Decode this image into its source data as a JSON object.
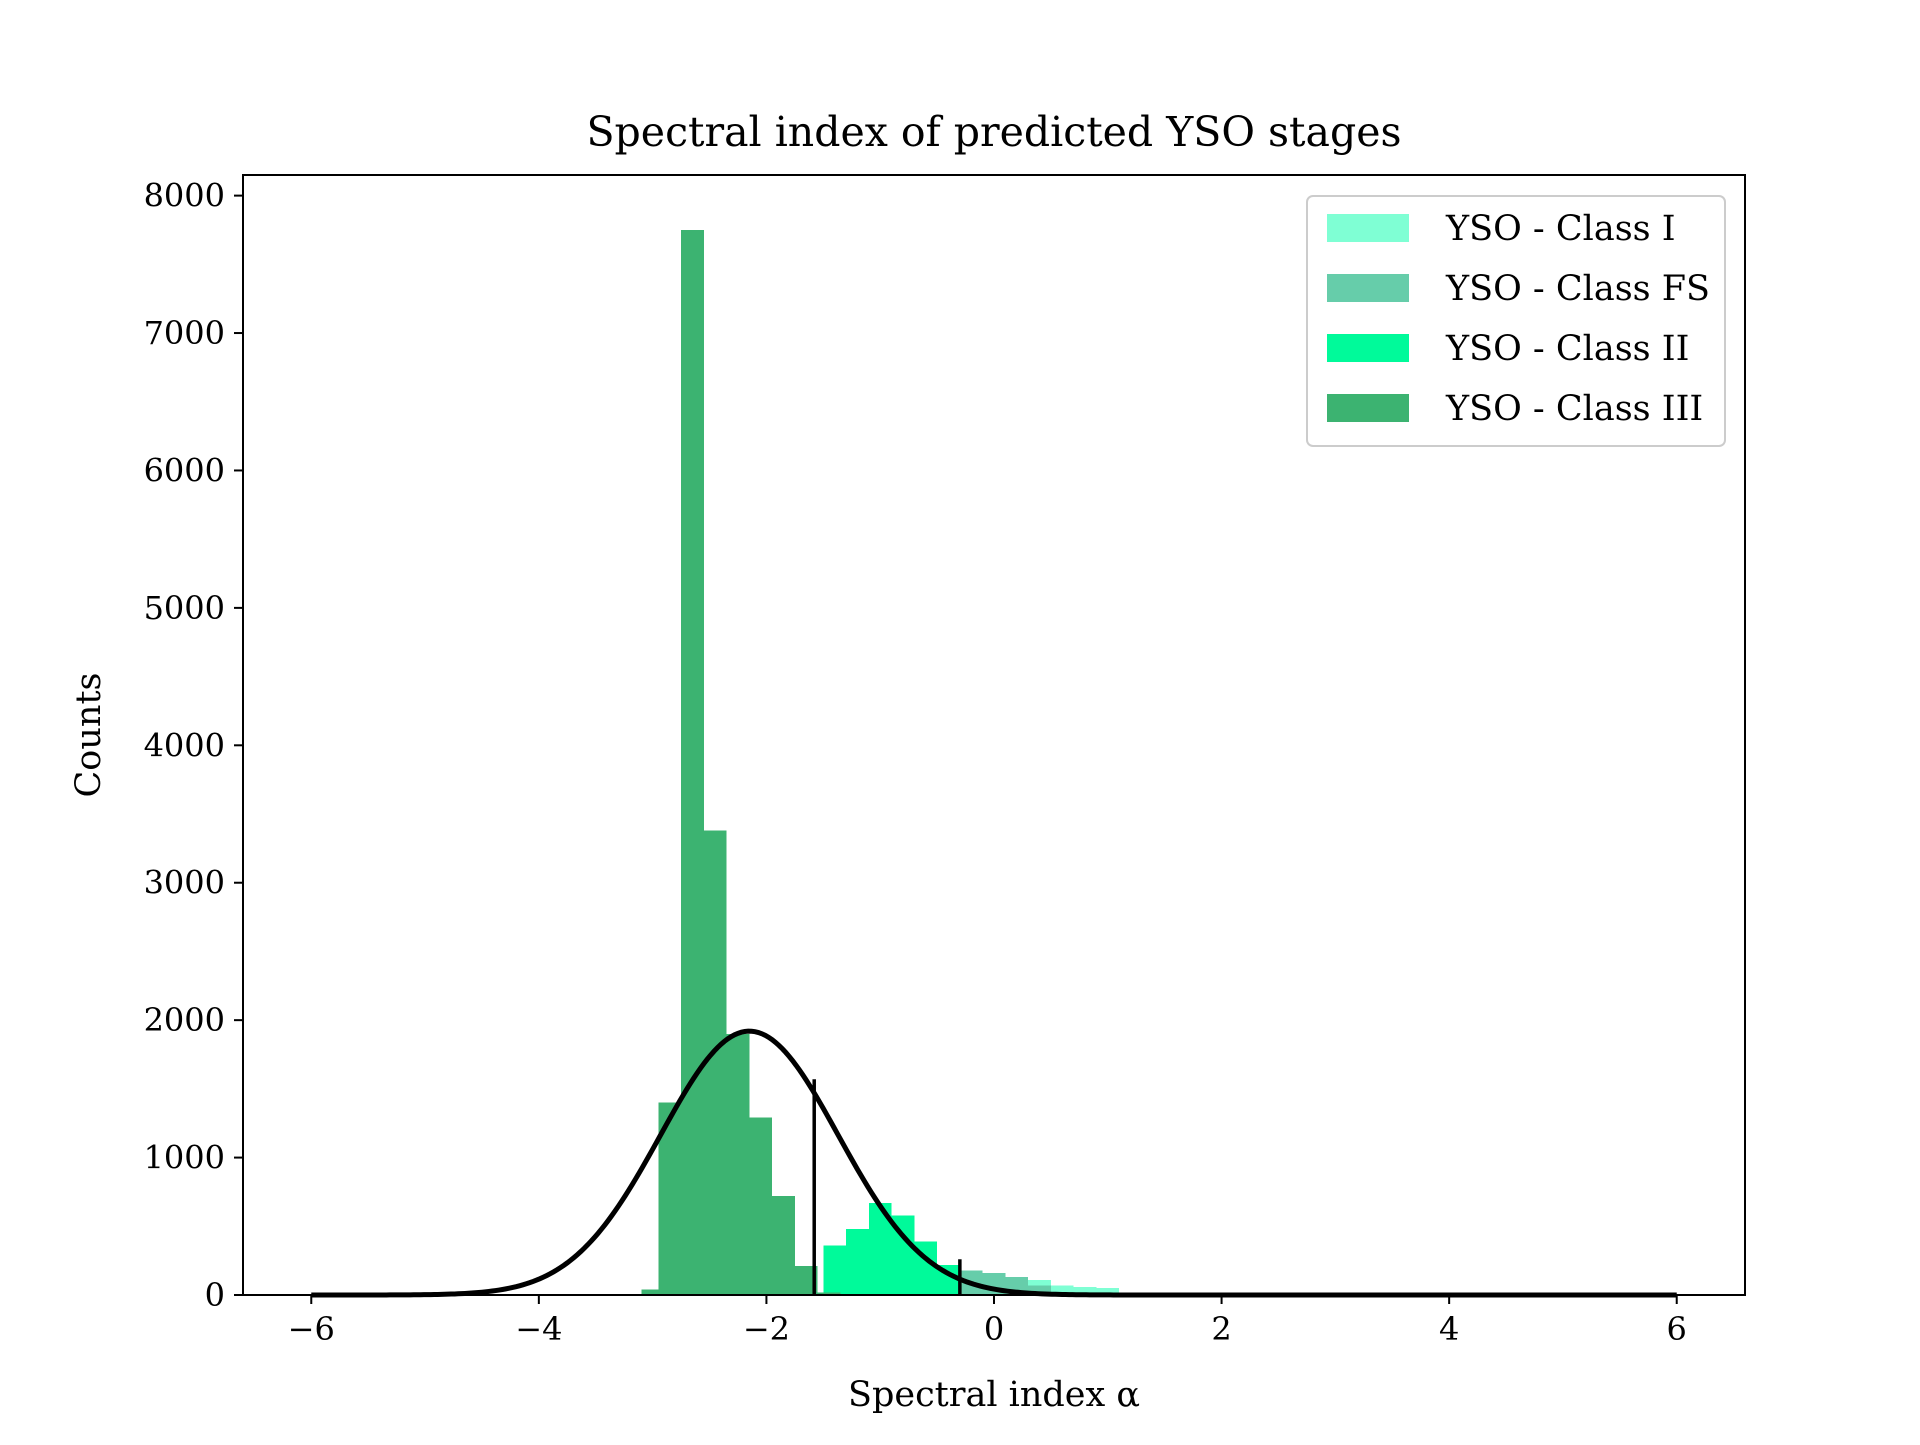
{
  "chart_data": {
    "type": "bar",
    "title": "Spectral index of predicted YSO stages",
    "xlabel": "Spectral index α",
    "ylabel": "Counts",
    "xlim": [
      -6.6,
      6.6
    ],
    "ylim": [
      0,
      8150
    ],
    "xticks": [
      -6,
      -4,
      -2,
      0,
      2,
      4,
      6
    ],
    "xtick_labels": [
      "−6",
      "−4",
      "−2",
      "0",
      "2",
      "4",
      "6"
    ],
    "yticks": [
      0,
      1000,
      2000,
      3000,
      4000,
      5000,
      6000,
      7000,
      8000
    ],
    "ytick_labels": [
      "0",
      "1000",
      "2000",
      "3000",
      "4000",
      "5000",
      "6000",
      "7000",
      "8000"
    ],
    "grid": false,
    "legend_position": "top-right",
    "bin_width": 0.2,
    "series": [
      {
        "name": "YSO - Class I",
        "color": "#7fffd4",
        "bins": [
          {
            "x0": 0.1,
            "x1": 0.3,
            "count": 90
          },
          {
            "x0": 0.3,
            "x1": 0.5,
            "count": 110
          },
          {
            "x0": 0.5,
            "x1": 0.7,
            "count": 70
          },
          {
            "x0": 0.7,
            "x1": 0.9,
            "count": 60
          },
          {
            "x0": 0.9,
            "x1": 1.1,
            "count": 50
          },
          {
            "x0": 1.1,
            "x1": 1.3,
            "count": 10
          }
        ]
      },
      {
        "name": "YSO - Class FS",
        "color": "#66cdaa",
        "bins": [
          {
            "x0": -0.5,
            "x1": -0.3,
            "count": 160
          },
          {
            "x0": -0.3,
            "x1": -0.1,
            "count": 180
          },
          {
            "x0": -0.1,
            "x1": 0.1,
            "count": 160
          },
          {
            "x0": 0.1,
            "x1": 0.3,
            "count": 130
          },
          {
            "x0": 0.3,
            "x1": 0.5,
            "count": 70
          }
        ]
      },
      {
        "name": "YSO - Class II",
        "color": "#00fa9a",
        "bins": [
          {
            "x0": -1.5,
            "x1": -1.3,
            "count": 360
          },
          {
            "x0": -1.3,
            "x1": -1.1,
            "count": 480
          },
          {
            "x0": -1.1,
            "x1": -0.9,
            "count": 670
          },
          {
            "x0": -0.9,
            "x1": -0.7,
            "count": 580
          },
          {
            "x0": -0.7,
            "x1": -0.5,
            "count": 390
          },
          {
            "x0": -0.5,
            "x1": -0.3,
            "count": 220
          }
        ]
      },
      {
        "name": "YSO - Class III",
        "color": "#3cb371",
        "bins": [
          {
            "x0": -3.1,
            "x1": -2.95,
            "count": 40
          },
          {
            "x0": -2.95,
            "x1": -2.75,
            "count": 1400
          },
          {
            "x0": -2.75,
            "x1": -2.55,
            "count": 7750
          },
          {
            "x0": -2.55,
            "x1": -2.35,
            "count": 3380
          },
          {
            "x0": -2.35,
            "x1": -2.15,
            "count": 1900
          },
          {
            "x0": -2.15,
            "x1": -1.95,
            "count": 1290
          },
          {
            "x0": -1.95,
            "x1": -1.75,
            "count": 720
          },
          {
            "x0": -1.75,
            "x1": -1.55,
            "count": 210
          },
          {
            "x0": -1.55,
            "x1": -1.35,
            "count": 20
          }
        ]
      }
    ],
    "fit_curve": {
      "type": "gaussian",
      "color": "#000000",
      "amplitude": 1920,
      "mean": -2.15,
      "sigma": 0.78,
      "x_range": [
        -6,
        6
      ]
    },
    "vertical_lines": [
      {
        "x": -1.58,
        "y_top": 1570
      },
      {
        "x": -0.3,
        "y_top": 260
      }
    ]
  }
}
